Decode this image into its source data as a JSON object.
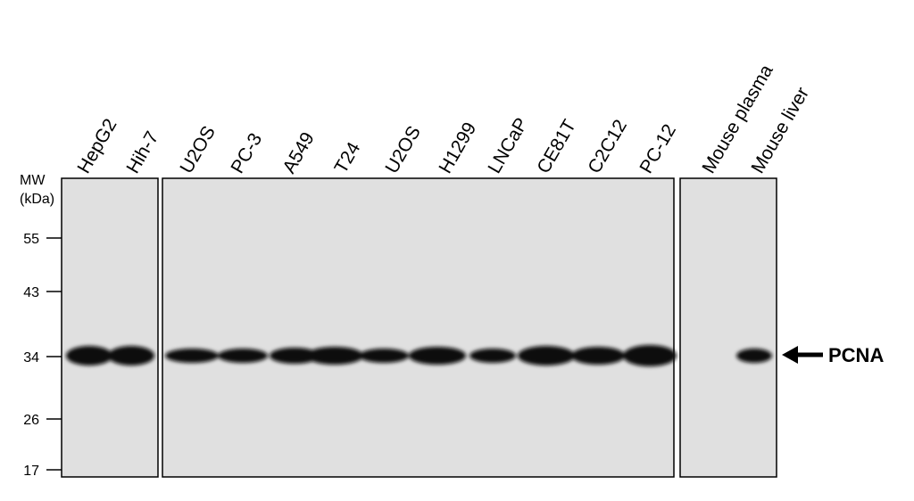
{
  "mw_label": "MW",
  "mw_unit": "(kDa)",
  "mw_markers": [
    "55",
    "43",
    "34",
    "26",
    "17"
  ],
  "lanes": [
    "HepG2",
    "Hih-7",
    "U2OS",
    "PC-3",
    "A549",
    "T24",
    "U2OS",
    "H1299",
    "LNCaP",
    "CE81T",
    "C2C12",
    "PC-12",
    "Mouse plasma",
    "Mouse liver"
  ],
  "band_label": "PCNA"
}
